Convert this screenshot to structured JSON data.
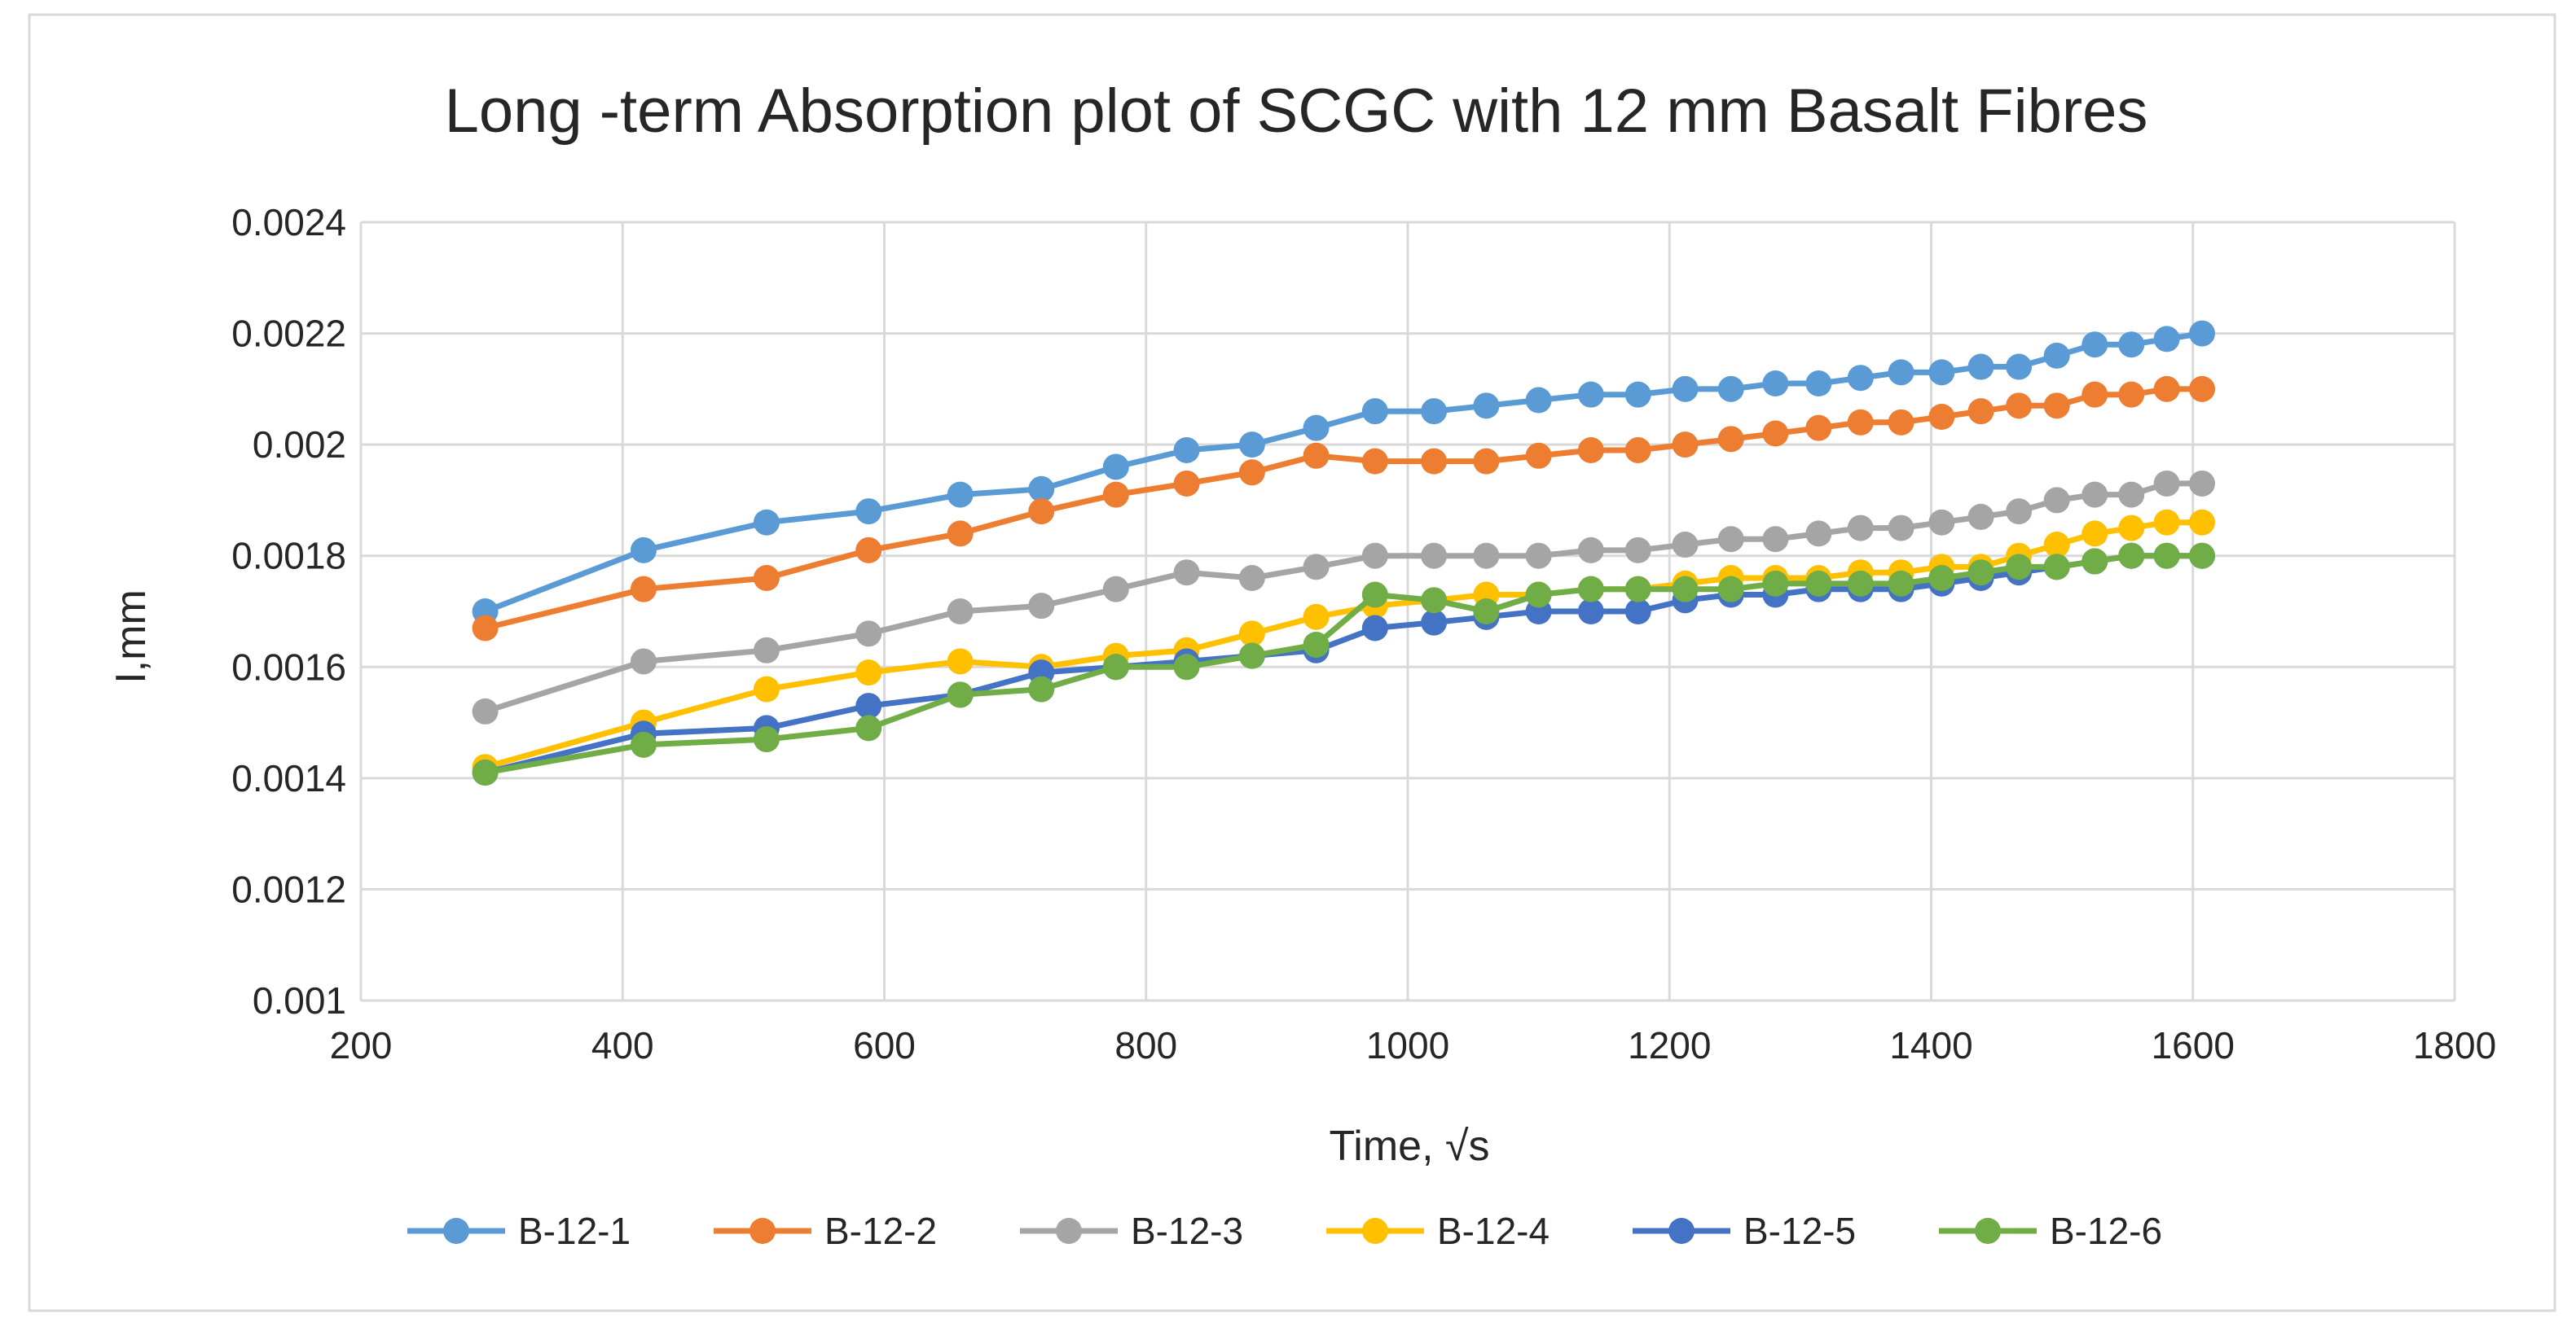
{
  "chart_data": {
    "type": "line",
    "title": "Long -term Absorption plot of SCGC with 12 mm Basalt Fibres",
    "xlabel": "Time, √s",
    "ylabel": "I,mm",
    "xlim": [
      200,
      1800
    ],
    "ylim": [
      0.001,
      0.0024
    ],
    "x_ticks": [
      200,
      400,
      600,
      800,
      1000,
      1200,
      1400,
      1600,
      1800
    ],
    "x_tick_labels": [
      "200",
      "400",
      "600",
      "800",
      "1000",
      "1200",
      "1400",
      "1600",
      "1800"
    ],
    "y_ticks": [
      0.001,
      0.0012,
      0.0014,
      0.0016,
      0.0018,
      0.002,
      0.0022,
      0.0024
    ],
    "y_tick_labels": [
      "0.001",
      "0.0012",
      "0.0014",
      "0.0016",
      "0.0018",
      "0.002",
      "0.0022",
      "0.0024"
    ],
    "grid": true,
    "legend_position": "bottom",
    "x": [
      295,
      416,
      510,
      588,
      658,
      720,
      777,
      831,
      881,
      930,
      975,
      1020,
      1060,
      1100,
      1140,
      1176,
      1212,
      1247,
      1281,
      1314,
      1346,
      1377,
      1408,
      1438,
      1467,
      1496,
      1525,
      1553,
      1580,
      1607
    ],
    "series": [
      {
        "name": "B-12-1",
        "color": "#5B9BD5",
        "values": [
          0.0017,
          0.00181,
          0.00186,
          0.00188,
          0.00191,
          0.00192,
          0.00196,
          0.00199,
          0.002,
          0.00203,
          0.00206,
          0.00206,
          0.00207,
          0.00208,
          0.00209,
          0.00209,
          0.0021,
          0.0021,
          0.00211,
          0.00211,
          0.00212,
          0.00213,
          0.00213,
          0.00214,
          0.00214,
          0.00216,
          0.00218,
          0.00218,
          0.00219,
          0.0022
        ]
      },
      {
        "name": "B-12-2",
        "color": "#ED7D31",
        "values": [
          0.00167,
          0.00174,
          0.00176,
          0.00181,
          0.00184,
          0.00188,
          0.00191,
          0.00193,
          0.00195,
          0.00198,
          0.00197,
          0.00197,
          0.00197,
          0.00198,
          0.00199,
          0.00199,
          0.002,
          0.00201,
          0.00202,
          0.00203,
          0.00204,
          0.00204,
          0.00205,
          0.00206,
          0.00207,
          0.00207,
          0.00209,
          0.00209,
          0.0021,
          0.0021
        ]
      },
      {
        "name": "B-12-3",
        "color": "#A5A5A5",
        "values": [
          0.00152,
          0.00161,
          0.00163,
          0.00166,
          0.0017,
          0.00171,
          0.00174,
          0.00177,
          0.00176,
          0.00178,
          0.0018,
          0.0018,
          0.0018,
          0.0018,
          0.00181,
          0.00181,
          0.00182,
          0.00183,
          0.00183,
          0.00184,
          0.00185,
          0.00185,
          0.00186,
          0.00187,
          0.00188,
          0.0019,
          0.00191,
          0.00191,
          0.00193,
          0.00193
        ]
      },
      {
        "name": "B-12-4",
        "color": "#FFC000",
        "values": [
          0.00142,
          0.0015,
          0.00156,
          0.00159,
          0.00161,
          0.0016,
          0.00162,
          0.00163,
          0.00166,
          0.00169,
          0.00171,
          0.00172,
          0.00173,
          0.00173,
          0.00174,
          0.00174,
          0.00175,
          0.00176,
          0.00176,
          0.00176,
          0.00177,
          0.00177,
          0.00178,
          0.00178,
          0.0018,
          0.00182,
          0.00184,
          0.00185,
          0.00186,
          0.00186
        ]
      },
      {
        "name": "B-12-5",
        "color": "#4472C4",
        "values": [
          0.00141,
          0.00148,
          0.00149,
          0.00153,
          0.00155,
          0.00159,
          0.0016,
          0.00161,
          0.00162,
          0.00163,
          0.00167,
          0.00168,
          0.00169,
          0.0017,
          0.0017,
          0.0017,
          0.00172,
          0.00173,
          0.00173,
          0.00174,
          0.00174,
          0.00174,
          0.00175,
          0.00176,
          0.00177,
          0.00178,
          0.00179,
          0.0018,
          0.0018,
          0.0018
        ]
      },
      {
        "name": "B-12-6",
        "color": "#70AD47",
        "values": [
          0.00141,
          0.00146,
          0.00147,
          0.00149,
          0.00155,
          0.00156,
          0.0016,
          0.0016,
          0.00162,
          0.00164,
          0.00173,
          0.00172,
          0.0017,
          0.00173,
          0.00174,
          0.00174,
          0.00174,
          0.00174,
          0.00175,
          0.00175,
          0.00175,
          0.00175,
          0.00176,
          0.00177,
          0.00178,
          0.00178,
          0.00179,
          0.0018,
          0.0018,
          0.0018
        ]
      }
    ]
  },
  "colors": {
    "background": "#FFFFFF",
    "gridline": "#D9D9D9",
    "border": "#D9D9D9",
    "text": "#262626"
  }
}
